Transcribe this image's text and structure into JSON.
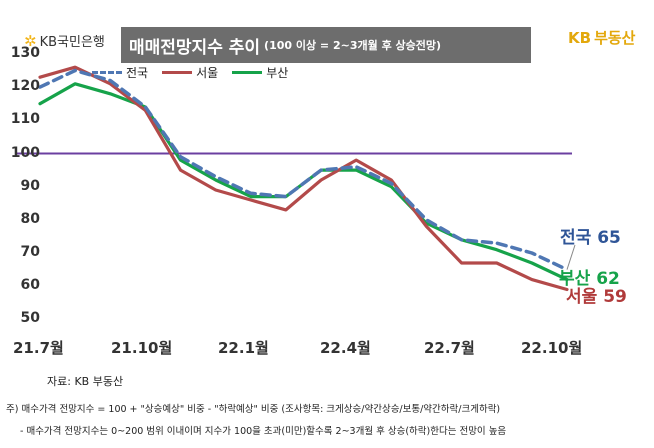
{
  "header": {
    "bank_logo_text": "KB국민은행",
    "title_main": "매매전망지수 추이",
    "title_sub": "(100 이상 = 2~3개월 후 상승전망)",
    "brand_kb": "KB",
    "brand_name": "부동산"
  },
  "colors": {
    "national": "#4f77b3",
    "seoul": "#b34a4a",
    "busan": "#16a34a",
    "reference": "#6b3fa0",
    "title_bg": "#6d6d6d",
    "brand": "#e3a80c"
  },
  "chart_data": {
    "type": "line",
    "x_tick_labels": [
      "21.7월",
      "21.10월",
      "22.1월",
      "22.4월",
      "22.7월",
      "22.10월"
    ],
    "ylim": [
      45,
      133
    ],
    "y_ticks": [
      50,
      60,
      70,
      80,
      90,
      100,
      110,
      120,
      130
    ],
    "grid": false,
    "legend_position": "top-left",
    "reference_line": 100,
    "series": [
      {
        "name": "전국",
        "style": "dashed",
        "color": "#4f77b3",
        "values": [
          120,
          125,
          122,
          114,
          99,
          93,
          88,
          87,
          95,
          96,
          91,
          80,
          74,
          73,
          70,
          65
        ]
      },
      {
        "name": "서울",
        "style": "solid",
        "color": "#b34a4a",
        "values": [
          123,
          126,
          121,
          113,
          95,
          89,
          86,
          83,
          92,
          98,
          92,
          78,
          67,
          67,
          62,
          59
        ]
      },
      {
        "name": "부산",
        "style": "solid",
        "color": "#16a34a",
        "values": [
          115,
          121,
          118,
          114,
          98,
          92,
          87,
          87,
          95,
          95,
          90,
          79,
          74,
          71,
          67,
          62
        ]
      }
    ],
    "end_labels": [
      {
        "series": "전국",
        "text": "전국",
        "value": "65"
      },
      {
        "series": "부산",
        "text": "부산",
        "value": "62"
      },
      {
        "series": "서울",
        "text": "서울",
        "value": "59"
      }
    ]
  },
  "footer": {
    "source": "자료: KB 부동산",
    "note1": "주) 매수가격 전망지수 = 100 + \"상승예상\" 비중 - \"하락예상\" 비중 (조사항목: 크게상승/약간상승/보통/약간하락/크게하락)",
    "note2": "- 매수가격 전망지수는 0~200 범위 이내이며 지수가 100을 초과(미만)할수록 2~3개월 후 상승(하락)한다는 전망이 높음"
  }
}
